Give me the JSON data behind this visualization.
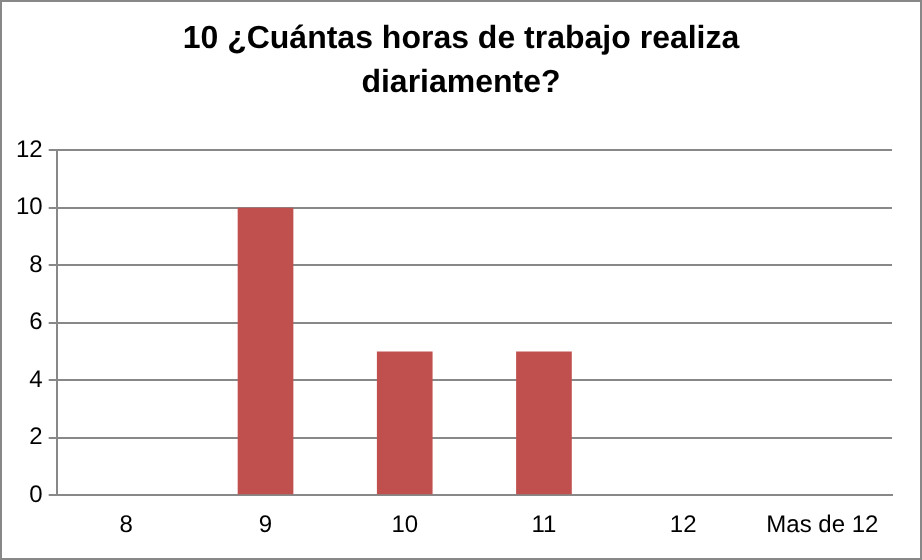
{
  "chart_data": {
    "type": "bar",
    "title": "10 ¿Cuántas horas de trabajo realiza diariamente?",
    "categories": [
      "8",
      "9",
      "10",
      "11",
      "12",
      "Mas de 12"
    ],
    "values": [
      0,
      10,
      5,
      5,
      0,
      0
    ],
    "color": "#c0504d",
    "ylim": [
      0,
      12
    ],
    "yticks": [
      0,
      2,
      4,
      6,
      8,
      10,
      12
    ],
    "grid": "y",
    "legend": false
  }
}
